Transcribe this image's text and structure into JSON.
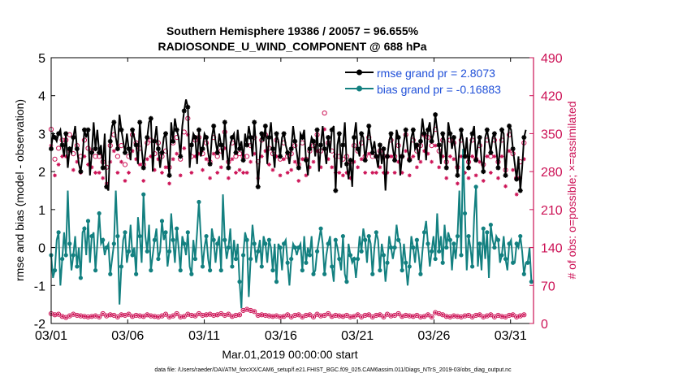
{
  "chart_data": {
    "type": "line",
    "title_lines": [
      "Southern Hemisphere 19386 / 20057 = 96.655%",
      "RADIOSONDE_U_WIND_COMPONENT @ 688 hPa"
    ],
    "ylabel_left": "rmse and bias (model - observation)",
    "ylabel_right": "# of obs: o=possible; ×=assimilated",
    "xlabel": "Mar.01,2019 00:00:00 start",
    "footnote": "data file: /Users/raeder/DAI/ATM_forcXX/CAM6_setup/f.e21.FHIST_BGC.f09_025.CAM6assim.011/Diags_NTrS_2019-03/obs_diag_output.nc",
    "ylim_left": [
      -2,
      5
    ],
    "ylim_right": [
      0,
      490
    ],
    "xlim_days": [
      0,
      31.5
    ],
    "yticks_left": [
      "-2",
      "-1",
      "0",
      "1",
      "2",
      "3",
      "4",
      "5"
    ],
    "yticks_right": [
      "0",
      "70",
      "140",
      "210",
      "280",
      "350",
      "420",
      "490"
    ],
    "xticks": [
      "03/01",
      "03/06",
      "03/11",
      "03/16",
      "03/21",
      "03/26",
      "03/31"
    ],
    "xtick_days": [
      0,
      5,
      10,
      15,
      20,
      25,
      30
    ],
    "legend": [
      "rmse grand pr = 2.8073",
      "bias grand pr = -0.16883"
    ],
    "colors": {
      "rmse": "#000000",
      "bias": "#138080",
      "obs": "#cc1155",
      "zero_line": "#c8c8c8",
      "legend_text": "#1f4fd8",
      "axis_right": "#cc1155"
    },
    "rmse": [
      2.6,
      3.0,
      2.9,
      2.8,
      3.0,
      3.1,
      2.7,
      2.4,
      3.0,
      2.1,
      2.6,
      2.5,
      2.9,
      3.2,
      2.6,
      2.2,
      2.0,
      2.4,
      3.1,
      2.9,
      3.1,
      1.9,
      2.5,
      3.3,
      2.6,
      3.1,
      2.5,
      2.7,
      2.1,
      3.0,
      1.6,
      1.5,
      2.8,
      3.2,
      3.3,
      2.9,
      2.6,
      3.5,
      3.1,
      2.8,
      2.5,
      3.0,
      2.6,
      2.3,
      3.1,
      2.9,
      2.7,
      2.2,
      3.3,
      2.6,
      2.1,
      2.5,
      2.9,
      3.3,
      3.4,
      2.0,
      2.8,
      3.2,
      2.6,
      2.1,
      2.5,
      2.9,
      3.0,
      2.4,
      1.9,
      3.3,
      2.8,
      3.4,
      3.1,
      2.9,
      2.4,
      3.2,
      3.6,
      3.9,
      3.7,
      2.1,
      2.7,
      3.0,
      2.9,
      2.2,
      3.1,
      2.4,
      2.6,
      3.0,
      2.9,
      2.5,
      2.2,
      2.9,
      3.2,
      2.8,
      2.5,
      3.0,
      2.7,
      2.3,
      3.3,
      2.6,
      2.1,
      2.7,
      2.9,
      3.0,
      2.5,
      3.1,
      2.6,
      2.8,
      2.3,
      3.0,
      2.7,
      3.2,
      2.9,
      2.4,
      3.3,
      2.6,
      1.6,
      2.4,
      3.0,
      2.8,
      3.2,
      2.2,
      2.9,
      3.3,
      2.6,
      2.1,
      3.0,
      2.8,
      2.4,
      2.9,
      3.0,
      2.7,
      2.5,
      2.2,
      2.6,
      3.2,
      2.8,
      2.5,
      2.1,
      3.0,
      2.9,
      3.1,
      2.3,
      1.9,
      2.6,
      2.9,
      2.8,
      2.4,
      3.1,
      2.0,
      2.7,
      3.2,
      2.6,
      2.2,
      2.9,
      2.5,
      3.1,
      3.2,
      1.5,
      2.7,
      3.0,
      2.1,
      2.7,
      3.3,
      2.2,
      1.8,
      2.3,
      1.6,
      2.9,
      3.3,
      2.6,
      2.4,
      3.0,
      2.9,
      2.3,
      2.7,
      3.2,
      2.8,
      2.5,
      2.8,
      2.4,
      2.1,
      2.7,
      2.2,
      2.6,
      1.5,
      2.4,
      2.8,
      3.0,
      2.6,
      2.3,
      3.1,
      2.9,
      1.9,
      2.4,
      2.8,
      3.1,
      2.6,
      2.3,
      2.9,
      3.1,
      2.6,
      2.7,
      2.3,
      2.8,
      3.4,
      3.0,
      2.3,
      3.1,
      3.3,
      2.8,
      3.0,
      3.5,
      3.1,
      2.7,
      2.2,
      3.0,
      2.8,
      2.1,
      3.3,
      3.0,
      2.6,
      2.9,
      2.5,
      1.9,
      2.6,
      3.1,
      2.8,
      2.4,
      2.9,
      2.1,
      2.7,
      3.0,
      3.2,
      2.3,
      2.7,
      2.9,
      2.3,
      2.0,
      2.9,
      3.1,
      2.8,
      2.5,
      2.9,
      3.0,
      2.6,
      2.1,
      2.6,
      3.1,
      3.0,
      1.9,
      2.7,
      3.2,
      3.1,
      2.6,
      2.2,
      1.8,
      2.4,
      1.5,
      2.1,
      2.9,
      3.1
    ],
    "bias": [
      -0.2,
      -0.8,
      -0.6,
      0.2,
      0.4,
      -1.0,
      -0.3,
      0.4,
      -0.2,
      1.5,
      0.1,
      -0.6,
      -0.2,
      0.3,
      -0.5,
      0.0,
      -0.8,
      0.4,
      0.5,
      -0.2,
      0.7,
      -0.4,
      0.3,
      0.4,
      -0.6,
      0.1,
      0.9,
      0.1,
      0.2,
      -0.2,
      0.0,
      0.1,
      -0.7,
      -0.3,
      0.1,
      1.5,
      0.3,
      -1.5,
      -0.5,
      0.2,
      0.4,
      -0.4,
      -0.1,
      0.6,
      -0.2,
      0.0,
      -0.7,
      0.8,
      0.3,
      -0.4,
      1.4,
      0.3,
      -0.1,
      0.6,
      -0.6,
      -0.2,
      0.2,
      0.5,
      -0.3,
      -0.1,
      0.7,
      0.2,
      0.4,
      -0.5,
      -0.1,
      0.9,
      0.2,
      -0.4,
      0.5,
      0.0,
      -0.6,
      0.3,
      0.1,
      -0.2,
      0.4,
      -0.5,
      -0.7,
      0.2,
      -0.3,
      0.4,
      1.2,
      0.3,
      -0.5,
      0.0,
      0.3,
      -0.3,
      -0.6,
      0.5,
      0.2,
      -0.4,
      0.1,
      0.3,
      -0.6,
      1.4,
      0.2,
      -0.3,
      0.0,
      0.5,
      -0.5,
      0.2,
      -0.3,
      0.1,
      -0.9,
      -1.6,
      -0.2,
      0.4,
      0.2,
      -1.3,
      -0.3,
      0.6,
      0.1,
      -0.4,
      -0.1,
      0.2,
      -0.5,
      0.3,
      0.1,
      -0.4,
      0.2,
      0.0,
      -0.6,
      0.1,
      -0.9,
      0.1,
      0.0,
      -0.6,
      0.1,
      0.2,
      -0.4,
      -1.0,
      -0.3,
      0.1,
      0.0,
      -0.2,
      0.0,
      0.1,
      -0.6,
      0.3,
      -0.4,
      0.0,
      -0.2,
      0.3,
      -0.7,
      -0.6,
      -0.1,
      0.2,
      0.5,
      0.1,
      -0.7,
      -0.2,
      0.1,
      0.3,
      -0.5,
      -0.9,
      0.2,
      0.0,
      -0.3,
      -0.6,
      0.3,
      -0.7,
      -0.9,
      0.1,
      -0.2,
      -0.4,
      -0.3,
      -0.8,
      -0.3,
      0.3,
      -0.1,
      0.5,
      0.2,
      -0.4,
      0.3,
      0.1,
      -0.7,
      0.0,
      0.4,
      0.2,
      -0.6,
      0.1,
      -0.2,
      -0.9,
      -0.4,
      0.3,
      0.0,
      -0.3,
      0.0,
      0.6,
      0.2,
      0.1,
      -0.6,
      0.1,
      -0.4,
      -1.0,
      -0.5,
      0.3,
      0.0,
      -0.4,
      0.2,
      -0.2,
      -0.7,
      -0.1,
      0.4,
      0.7,
      0.1,
      -0.5,
      -0.1,
      0.3,
      -0.3,
      0.9,
      -0.1,
      0.3,
      -0.4,
      0.6,
      0.0,
      0.4,
      0.2,
      -0.6,
      0.1,
      -0.3,
      0.3,
      1.5,
      -0.2,
      2.6,
      0.9,
      -0.6,
      0.3,
      0.0,
      -0.5,
      0.8,
      1.6,
      -0.5,
      0.1,
      -0.6,
      0.5,
      -0.3,
      0.4,
      -0.8,
      0.6,
      0.2,
      0.0,
      0.3,
      0.2,
      -0.4,
      -0.2,
      0.3,
      -0.3,
      -0.6,
      0.1,
      0.2,
      -0.4,
      -0.4,
      0.1,
      0.0,
      0.3,
      -0.1,
      -0.7,
      -0.4,
      -0.4,
      0.0,
      -0.9
    ],
    "obs_possible_top": [
      350,
      315,
      295,
      320,
      315,
      345,
      330,
      325,
      330,
      285,
      340,
      310,
      305,
      335,
      320,
      295,
      300,
      310,
      330,
      335,
      315,
      285,
      310,
      355,
      300,
      340,
      300,
      320,
      290,
      325,
      280,
      270,
      320,
      335,
      340,
      305,
      300,
      330,
      320,
      300,
      285,
      330,
      300,
      310,
      340,
      330,
      325,
      300,
      315,
      310,
      285,
      290,
      325,
      345,
      330,
      285,
      305,
      345,
      325,
      285,
      300,
      325,
      310,
      290,
      280,
      330,
      325,
      340,
      335,
      320,
      295,
      335,
      345,
      390,
      370,
      290,
      300,
      320,
      330,
      300,
      335,
      300,
      305,
      320,
      325,
      295,
      290,
      320,
      335,
      320,
      300,
      330,
      310,
      300,
      345,
      300,
      290,
      300,
      325,
      330,
      300,
      340,
      305,
      320,
      300,
      330,
      300,
      345,
      320,
      300,
      335,
      305,
      290,
      310,
      330,
      320,
      340,
      295,
      315,
      350,
      305,
      285,
      330,
      310,
      295,
      320,
      325,
      300,
      300,
      290,
      305,
      335,
      320,
      300,
      285,
      330,
      325,
      335,
      295,
      285,
      310,
      325,
      320,
      300,
      340,
      285,
      310,
      390,
      380,
      300,
      325,
      300,
      310,
      340,
      300,
      300,
      300,
      340,
      295,
      290,
      300,
      285,
      290,
      275,
      320,
      345,
      310,
      300,
      325,
      320,
      300,
      310,
      335,
      320,
      300,
      320,
      300,
      290,
      310,
      295,
      300,
      270,
      300,
      315,
      330,
      305,
      300,
      335,
      320,
      285,
      300,
      320,
      340,
      305,
      295,
      320,
      330,
      310,
      310,
      300,
      320,
      355,
      340,
      300,
      335,
      340,
      320,
      330,
      350,
      335,
      310,
      295,
      330,
      320,
      290,
      340,
      330,
      305,
      325,
      300,
      280,
      305,
      330,
      320,
      300,
      325,
      290,
      315,
      330,
      335,
      295,
      310,
      320,
      295,
      285,
      320,
      330,
      315,
      300,
      320,
      330,
      305,
      290,
      305,
      330,
      325,
      275,
      310,
      340,
      330,
      305,
      290,
      260,
      300,
      290,
      285,
      325,
      330
    ],
    "obs_possible_bottom": [
      18,
      14,
      16,
      12,
      17,
      15,
      13,
      18,
      11,
      16,
      14,
      12,
      17,
      13,
      15,
      12,
      14,
      16,
      13,
      18,
      12,
      15,
      13,
      17,
      14,
      16,
      12,
      15,
      18,
      13,
      14,
      11,
      16,
      13,
      15,
      14,
      12,
      18,
      16,
      13,
      15,
      12,
      17,
      14,
      13,
      16,
      15,
      12,
      14,
      18,
      13,
      15,
      16,
      12,
      14,
      17,
      13,
      15,
      12,
      16,
      14,
      13,
      17,
      15,
      12,
      16,
      14,
      13,
      18,
      15,
      12,
      16,
      13,
      14,
      17,
      12,
      15,
      16,
      14,
      13,
      18,
      12,
      15,
      14,
      16,
      13,
      17,
      14,
      15,
      12,
      16,
      13,
      18,
      14,
      15,
      12,
      17,
      16,
      13,
      14,
      15,
      18,
      16,
      22,
      24,
      20,
      26,
      28,
      24,
      30,
      22,
      18,
      15,
      14,
      16,
      13,
      15,
      12,
      14,
      17,
      13,
      16,
      14,
      15,
      12,
      18,
      13,
      15,
      16,
      14,
      12,
      17,
      15,
      13,
      16,
      14,
      12,
      18,
      15,
      13,
      16,
      14,
      12,
      15,
      17,
      13,
      14,
      16,
      15,
      12,
      18,
      14,
      13,
      16,
      15,
      12,
      14,
      17,
      13,
      16,
      15,
      14,
      12,
      18,
      13,
      15,
      16,
      14,
      12,
      17,
      15,
      13,
      16,
      14,
      12,
      18,
      15,
      13,
      16,
      14,
      12,
      15,
      17,
      13,
      14,
      16,
      15,
      12,
      18,
      14,
      13,
      16,
      15,
      12,
      14,
      17,
      13,
      16,
      15,
      14,
      12,
      18,
      13,
      15,
      16,
      14,
      12,
      17,
      20,
      22,
      18,
      24,
      16,
      14,
      13,
      15,
      12,
      18,
      14,
      16,
      13,
      15,
      12,
      17,
      14,
      16,
      15,
      13,
      12,
      18,
      15,
      14,
      16,
      13,
      12,
      17,
      14,
      15,
      16,
      13,
      12,
      18,
      15,
      14,
      13,
      16,
      12,
      17,
      15,
      14,
      16,
      13,
      12,
      18,
      14,
      15,
      16,
      13
    ]
  }
}
